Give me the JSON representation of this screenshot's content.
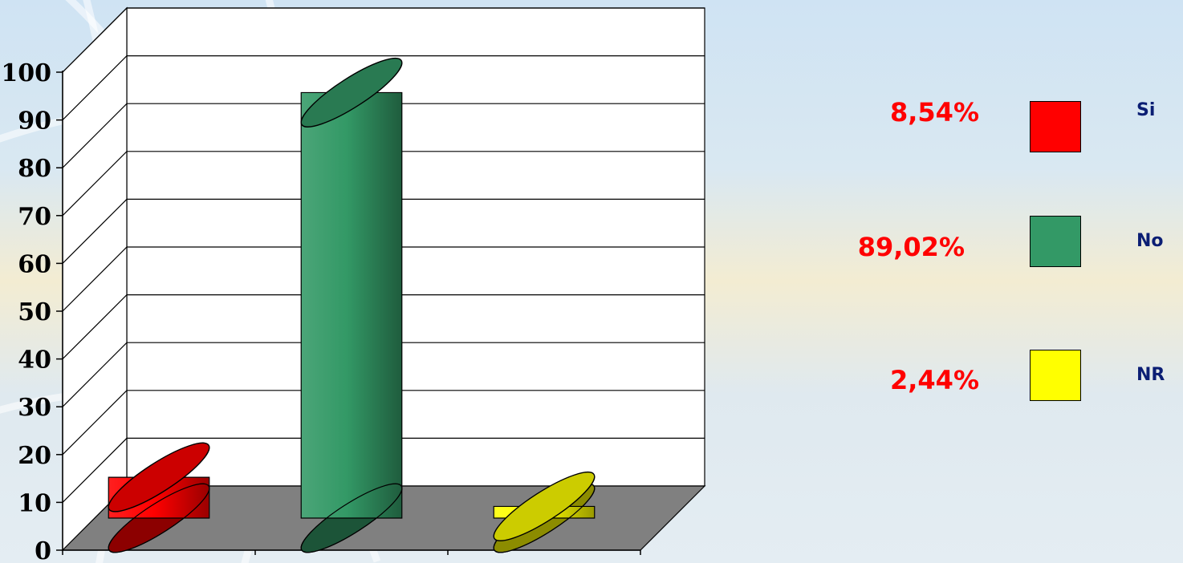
{
  "chart_data": {
    "type": "bar",
    "categories": [
      "Si",
      "No",
      "NR"
    ],
    "values": [
      8.54,
      89.02,
      2.44
    ],
    "value_labels": [
      "8,54%",
      "89,02%",
      "2,44%"
    ],
    "colors": [
      "#ff0000",
      "#339966",
      "#ffff00"
    ],
    "bar_shape": "3d-cylinder",
    "ylim": [
      0,
      100
    ],
    "yticks": [
      "0",
      "10",
      "20",
      "30",
      "40",
      "50",
      "60",
      "70",
      "80",
      "90",
      "100"
    ],
    "grid": true,
    "legend_position": "right",
    "title": "",
    "xlabel": "",
    "ylabel": ""
  }
}
